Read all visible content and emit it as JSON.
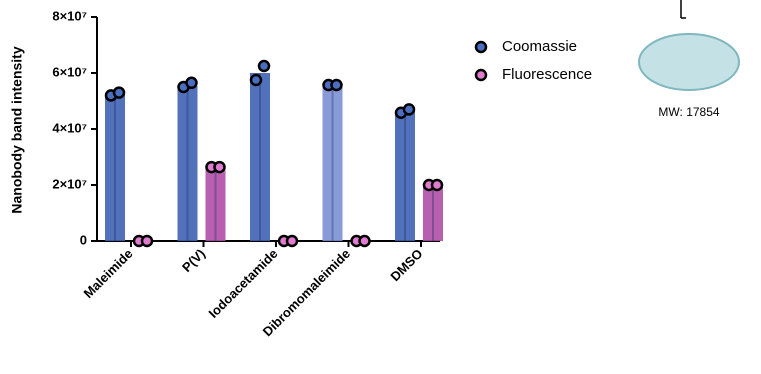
{
  "chart_data": {
    "type": "bar",
    "ylabel": "Nanobody band intensity",
    "categories": [
      "Maleimide",
      "P(V)",
      "Iodoacetamide",
      "Dibromomaleimide",
      "DMSO"
    ],
    "series": [
      {
        "name": "Coomassie",
        "color": "#3f62b4",
        "colors": [
          "#3f62b4",
          "#3f62b4",
          "#3f62b4",
          "#7b8fd4",
          "#3f62b4"
        ],
        "values": [
          52500000,
          55400000,
          60000000,
          55700000,
          46400000
        ],
        "replicates": [
          [
            52000000,
            53000000
          ],
          [
            55000000,
            56500000
          ],
          [
            57500000,
            62500000
          ],
          [
            55700000,
            55700000
          ],
          [
            45800000,
            47000000
          ]
        ]
      },
      {
        "name": "Fluorescence",
        "color": "#b04fa6",
        "colors": [
          "#b04fa6",
          "#b04fa6",
          "#b04fa6",
          "#b04fa6",
          "#b04fa6"
        ],
        "values": [
          0,
          26400000,
          0,
          0,
          20000000
        ],
        "replicates": [
          [
            0,
            0
          ],
          [
            26400000,
            26400000
          ],
          [
            0,
            0
          ],
          [
            0,
            0
          ],
          [
            20000000,
            20000000
          ]
        ]
      }
    ],
    "ylim": [
      0,
      80000000
    ],
    "yticks": [
      0,
      {
        "value": 20000000,
        "label": "2×10⁷"
      },
      {
        "value": 40000000,
        "label": "4×10⁷"
      },
      {
        "value": 60000000,
        "label": "6×10⁷"
      },
      {
        "value": 80000000,
        "label": "8×10⁷"
      }
    ],
    "legend": "upper right"
  },
  "diagram": {
    "label": "MW: 17854"
  }
}
